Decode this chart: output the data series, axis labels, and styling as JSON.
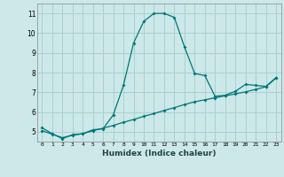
{
  "xlabel": "Humidex (Indice chaleur)",
  "ylabel": "",
  "background_color": "#cce8e8",
  "grid_color": "#aad0d0",
  "line_color": "#007777",
  "xlim": [
    -0.5,
    23.5
  ],
  "ylim": [
    4.5,
    11.5
  ],
  "xticks": [
    0,
    1,
    2,
    3,
    4,
    5,
    6,
    7,
    8,
    9,
    10,
    11,
    12,
    13,
    14,
    15,
    16,
    17,
    18,
    19,
    20,
    21,
    22,
    23
  ],
  "yticks": [
    5,
    6,
    7,
    8,
    9,
    10,
    11
  ],
  "series1_x": [
    0,
    1,
    2,
    3,
    4,
    5,
    6,
    7,
    8,
    9,
    10,
    11,
    12,
    13,
    14,
    15,
    16,
    17,
    18,
    19,
    20,
    21,
    22,
    23
  ],
  "series1_y": [
    5.2,
    4.9,
    4.65,
    4.85,
    4.9,
    5.1,
    5.15,
    5.85,
    7.35,
    9.5,
    10.6,
    11.0,
    11.0,
    10.8,
    9.3,
    7.95,
    7.85,
    6.8,
    6.85,
    7.05,
    7.4,
    7.35,
    7.3,
    7.75
  ],
  "series2_x": [
    0,
    1,
    2,
    3,
    4,
    5,
    6,
    7,
    8,
    9,
    10,
    11,
    12,
    13,
    14,
    15,
    16,
    17,
    18,
    19,
    20,
    21,
    22,
    23
  ],
  "series2_y": [
    5.05,
    4.88,
    4.7,
    4.82,
    4.9,
    5.05,
    5.18,
    5.32,
    5.48,
    5.62,
    5.78,
    5.92,
    6.08,
    6.22,
    6.38,
    6.52,
    6.62,
    6.72,
    6.82,
    6.92,
    7.02,
    7.15,
    7.28,
    7.72
  ]
}
